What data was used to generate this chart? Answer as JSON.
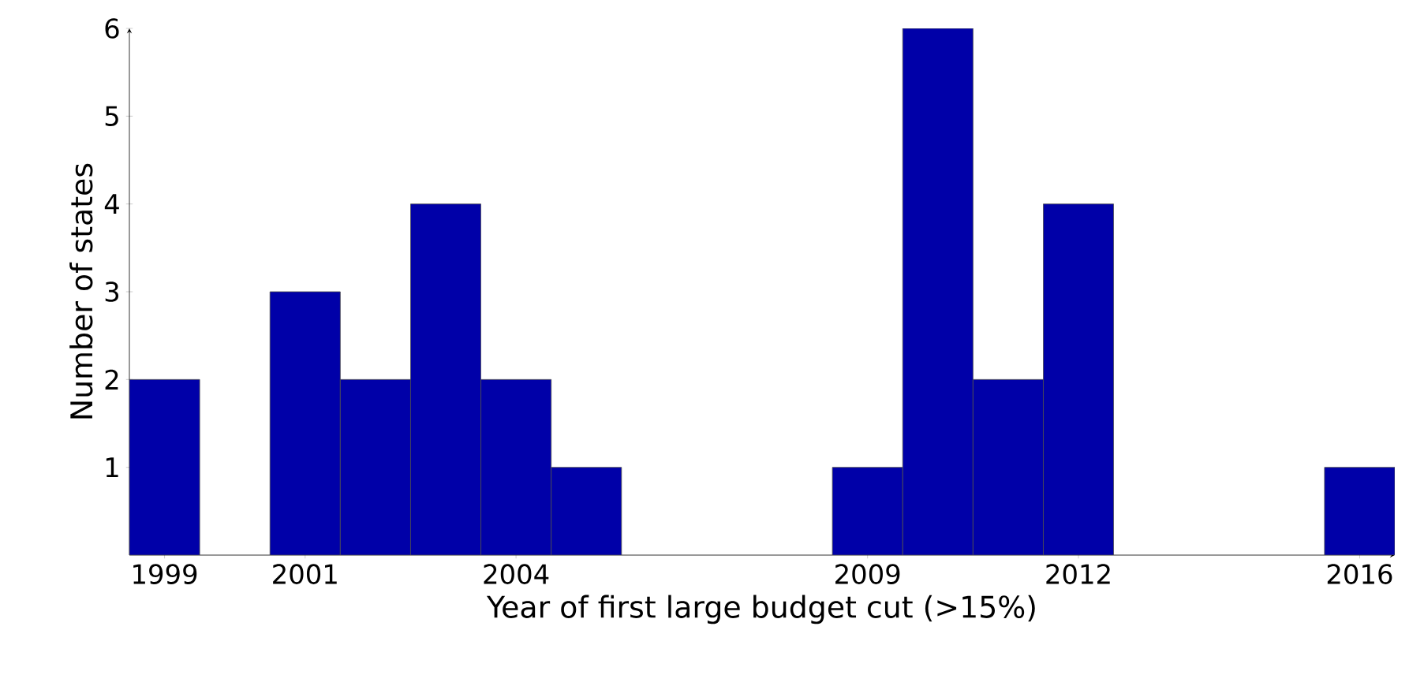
{
  "chart_data": {
    "type": "histogram",
    "xlabel": "Year of first large budget cut (>15%)",
    "ylabel": "Number of states",
    "bins": [
      1998.5,
      1999.5,
      2000.5,
      2001.5,
      2002.5,
      2003.5,
      2004.5,
      2005.5,
      2006.5,
      2007.5,
      2008.5,
      2009.5,
      2010.5,
      2011.5,
      2012.5,
      2013.5,
      2014.5,
      2015.5,
      2016.5
    ],
    "values": [
      2,
      0,
      3,
      2,
      4,
      2,
      1,
      0,
      0,
      0,
      1,
      6,
      2,
      4,
      0,
      0,
      0,
      1
    ],
    "color": "#0000a8",
    "xlim": [
      1998.5,
      2016.5
    ],
    "ylim": [
      0,
      6
    ],
    "xticks": [
      1999,
      2001,
      2004,
      2009,
      2012,
      2016
    ],
    "yticks": [
      1,
      2,
      3,
      4,
      5,
      6
    ],
    "grid": false
  }
}
